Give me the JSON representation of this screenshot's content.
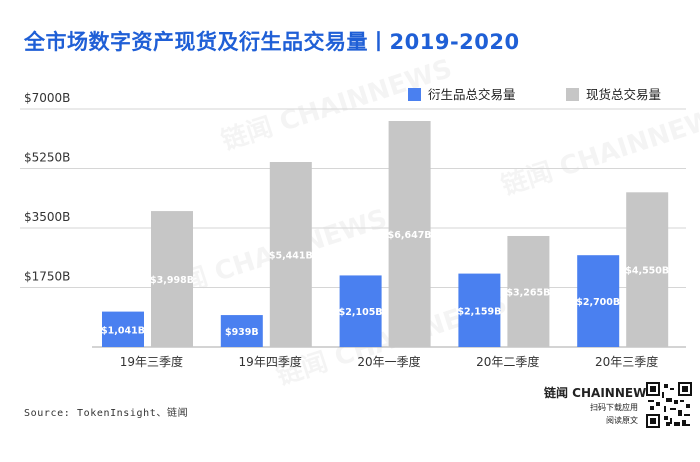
{
  "title": "全市场数字资产现货及衍生品交易量丨2019-2020",
  "source": "Source: TokenInsight、链闻",
  "brand": {
    "name": "链闻 CHAINNEWS",
    "line1": "扫码下载应用",
    "line2": "阅读原文"
  },
  "watermark": "链闻 CHAINNEWS",
  "colors": {
    "title": "#1f5fd6",
    "derivatives": "#4a80f0",
    "spot": "#c6c6c6",
    "axis_text": "#333333"
  },
  "chart_data": {
    "type": "bar",
    "categories": [
      "19年三季度",
      "19年四季度",
      "20年一季度",
      "20年二季度",
      "20年三季度"
    ],
    "series": [
      {
        "name": "衍生品总交易量",
        "values": [
          1041,
          939,
          2105,
          2159,
          2700
        ],
        "labels": [
          "$1,041B",
          "$939B",
          "$2,105B",
          "$2,159B",
          "$2,700B"
        ],
        "color": "#4a80f0"
      },
      {
        "name": "现货总交易量",
        "values": [
          3998,
          5441,
          6647,
          3265,
          4550
        ],
        "labels": [
          "$3,998B",
          "$5,441B",
          "$6,647B",
          "$3,265B",
          "$4,550B"
        ],
        "color": "#c6c6c6"
      }
    ],
    "yticks": [
      1750,
      3500,
      5250,
      7000
    ],
    "ytick_labels": [
      "$1750B",
      "$3500B",
      "$5250B",
      "$7000B"
    ],
    "ylim": [
      0,
      7000
    ],
    "grid": true,
    "legend_position": "top-right",
    "xlabel": "",
    "ylabel": ""
  }
}
